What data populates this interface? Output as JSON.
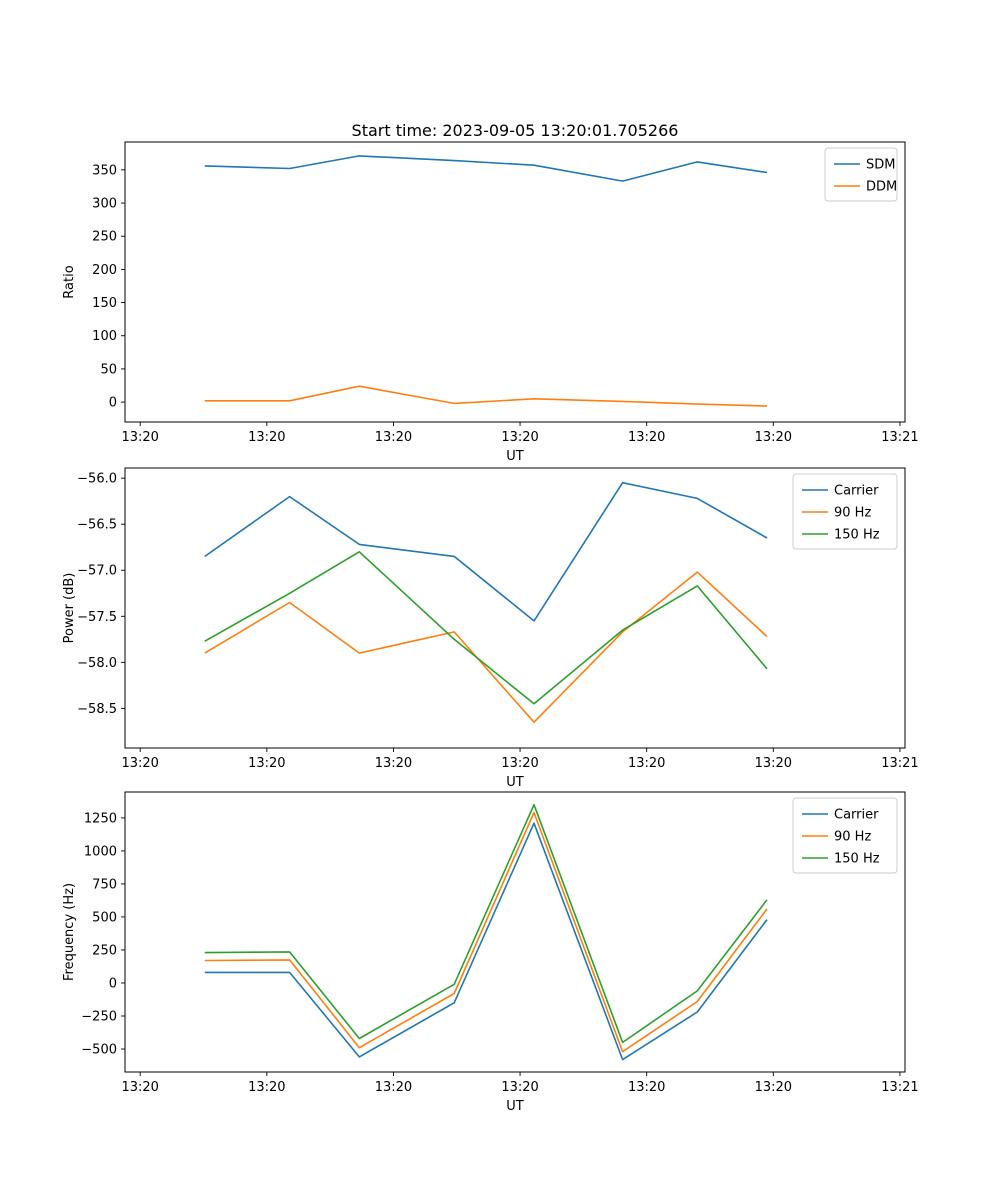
{
  "figure": {
    "title": "Start time: 2023-09-05 13:20:01.705266"
  },
  "colors": {
    "series_blue": "#1f77b4",
    "series_orange": "#ff7f0e",
    "series_green": "#2ca02c",
    "spine": "#000000",
    "legend_border": "#cccccc",
    "background": "#ffffff"
  },
  "chart_data": [
    {
      "id": "ratio",
      "type": "line",
      "xlabel": "UT",
      "ylabel": "Ratio",
      "x_unit": "seconds after 13:20:00",
      "xlim": [
        -1.2,
        60.4
      ],
      "ylim": [
        -30,
        392
      ],
      "grid": false,
      "legend_position": "upper right",
      "xticks": {
        "values": [
          0,
          10,
          20,
          30,
          40,
          50,
          60
        ],
        "labels": [
          "13:20",
          "13:20",
          "13:20",
          "13:20",
          "13:20",
          "13:20",
          "13:21"
        ]
      },
      "yticks": {
        "values": [
          0,
          50,
          100,
          150,
          200,
          250,
          300,
          350
        ],
        "labels": [
          "0",
          "50",
          "100",
          "150",
          "200",
          "250",
          "300",
          "350"
        ]
      },
      "x": [
        5.1,
        11.8,
        17.3,
        24.8,
        31.1,
        38.1,
        44.0,
        49.5
      ],
      "series": [
        {
          "name": "SDM",
          "color": "#1f77b4",
          "values": [
            356,
            352,
            371,
            364,
            357,
            333,
            362,
            346
          ]
        },
        {
          "name": "DDM",
          "color": "#ff7f0e",
          "values": [
            2,
            2,
            24,
            -2,
            5,
            1,
            -3,
            -6
          ]
        }
      ]
    },
    {
      "id": "power",
      "type": "line",
      "xlabel": "UT",
      "ylabel": "Power (dB)",
      "x_unit": "seconds after 13:20:00",
      "xlim": [
        -1.2,
        60.4
      ],
      "ylim": [
        -58.93,
        -55.89
      ],
      "grid": false,
      "legend_position": "upper right",
      "xticks": {
        "values": [
          0,
          10,
          20,
          30,
          40,
          50,
          60
        ],
        "labels": [
          "13:20",
          "13:20",
          "13:20",
          "13:20",
          "13:20",
          "13:20",
          "13:21"
        ]
      },
      "yticks": {
        "values": [
          -56.0,
          -56.5,
          -57.0,
          -57.5,
          -58.0,
          -58.5
        ],
        "labels": [
          "−56.0",
          "−56.5",
          "−57.0",
          "−57.5",
          "−58.0",
          "−58.5"
        ]
      },
      "x": [
        5.1,
        11.8,
        17.3,
        24.8,
        31.1,
        38.1,
        44.0,
        49.5
      ],
      "series": [
        {
          "name": "Carrier",
          "color": "#1f77b4",
          "values": [
            -56.85,
            -56.2,
            -56.72,
            -56.85,
            -57.55,
            -56.05,
            -56.22,
            -56.65
          ]
        },
        {
          "name": "90 Hz",
          "color": "#ff7f0e",
          "values": [
            -57.9,
            -57.35,
            -57.9,
            -57.67,
            -58.65,
            -57.67,
            -57.02,
            -57.72
          ]
        },
        {
          "name": "150 Hz",
          "color": "#2ca02c",
          "values": [
            -57.77,
            -57.25,
            -56.8,
            -57.75,
            -58.45,
            -57.65,
            -57.17,
            -58.07
          ]
        }
      ]
    },
    {
      "id": "frequency",
      "type": "line",
      "xlabel": "UT",
      "ylabel": "Frequency (Hz)",
      "x_unit": "seconds after 13:20:00",
      "xlim": [
        -1.2,
        60.4
      ],
      "ylim": [
        -674,
        1446
      ],
      "grid": false,
      "legend_position": "upper right",
      "xticks": {
        "values": [
          0,
          10,
          20,
          30,
          40,
          50,
          60
        ],
        "labels": [
          "13:20",
          "13:20",
          "13:20",
          "13:20",
          "13:20",
          "13:20",
          "13:21"
        ]
      },
      "yticks": {
        "values": [
          -500,
          -250,
          0,
          250,
          500,
          750,
          1000,
          1250
        ],
        "labels": [
          "−500",
          "−250",
          "0",
          "250",
          "500",
          "750",
          "1000",
          "1250"
        ]
      },
      "x": [
        5.1,
        11.8,
        17.3,
        24.8,
        31.1,
        38.1,
        44.0,
        49.5
      ],
      "series": [
        {
          "name": "Carrier",
          "color": "#1f77b4",
          "values": [
            80,
            80,
            -560,
            -150,
            1210,
            -580,
            -220,
            480
          ]
        },
        {
          "name": "90 Hz",
          "color": "#ff7f0e",
          "values": [
            170,
            175,
            -490,
            -80,
            1290,
            -520,
            -140,
            560
          ]
        },
        {
          "name": "150 Hz",
          "color": "#2ca02c",
          "values": [
            230,
            235,
            -420,
            -10,
            1350,
            -450,
            -60,
            630
          ]
        }
      ]
    }
  ]
}
